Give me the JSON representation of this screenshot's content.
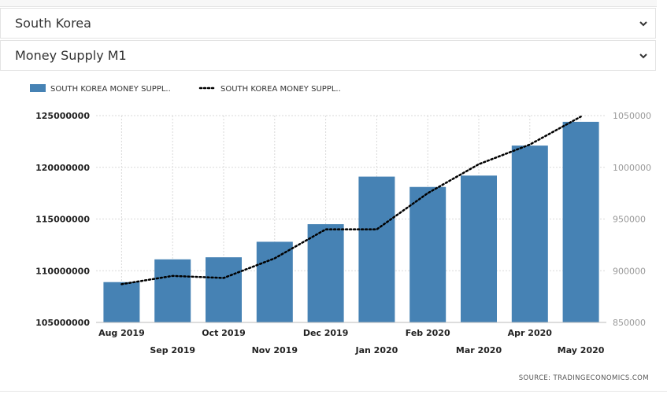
{
  "selectors": {
    "country": "South Korea",
    "indicator": "Money Supply M1"
  },
  "colors": {
    "bar": "#4682b4",
    "line": "#000000",
    "grid": "#d9d9d9"
  },
  "chart_data": {
    "type": "bar",
    "categories": [
      "Aug 2019",
      "Sep 2019",
      "Oct 2019",
      "Nov 2019",
      "Dec 2019",
      "Jan 2020",
      "Feb 2020",
      "Mar 2020",
      "Apr 2020",
      "May 2020"
    ],
    "series": [
      {
        "name": "SOUTH KOREA MONEY SUPPL..",
        "type": "bar",
        "axis": "left",
        "values": [
          108900000,
          111100000,
          111300000,
          112800000,
          114500000,
          119100000,
          118100000,
          119200000,
          122100000,
          124400000
        ]
      },
      {
        "name": "SOUTH KOREA MONEY SUPPL..",
        "type": "line",
        "style": "dotted",
        "axis": "right",
        "values": [
          887000,
          895000,
          893000,
          912000,
          940000,
          940000,
          975000,
          1003000,
          1022000,
          1049000
        ]
      }
    ],
    "ylim": [
      105000000,
      125000000
    ],
    "yticks": [
      "125000000",
      "120000000",
      "115000000",
      "110000000",
      "105000000"
    ],
    "y2lim": [
      850000,
      1050000
    ],
    "y2ticks": [
      "1050000",
      "1000000",
      "950000",
      "900000",
      "850000"
    ],
    "grid": true,
    "legend": "top-left",
    "source": "SOURCE:  TRADINGECONOMICS.COM"
  }
}
